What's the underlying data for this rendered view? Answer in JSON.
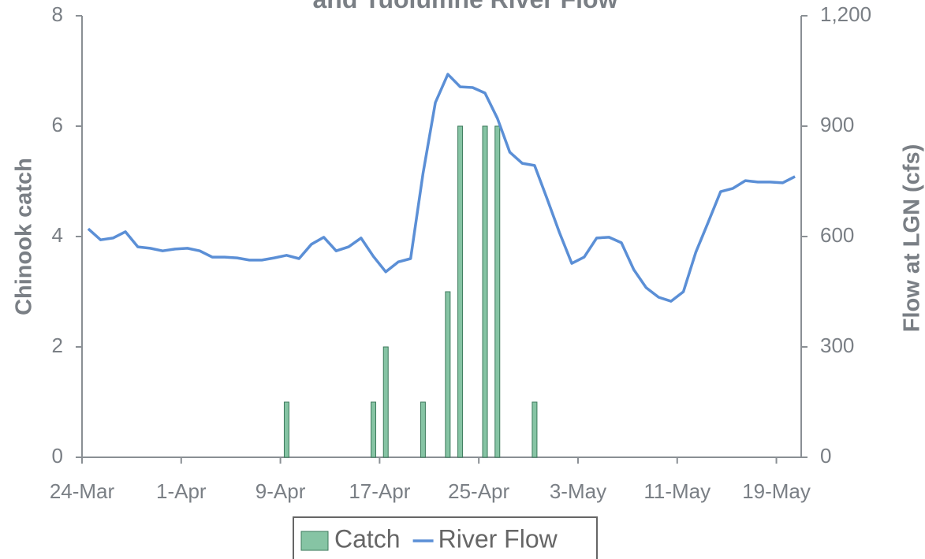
{
  "chart_data": {
    "type": "combo",
    "title": "and Tuolumne River Flow",
    "y_label": "Chinook catch",
    "y2_label": "Flow at LGN (cfs)",
    "x": [
      "24-Mar",
      "25-Mar",
      "26-Mar",
      "27-Mar",
      "28-Mar",
      "29-Mar",
      "30-Mar",
      "31-Mar",
      "1-Apr",
      "2-Apr",
      "3-Apr",
      "4-Apr",
      "5-Apr",
      "6-Apr",
      "7-Apr",
      "8-Apr",
      "9-Apr",
      "10-Apr",
      "11-Apr",
      "12-Apr",
      "13-Apr",
      "14-Apr",
      "15-Apr",
      "16-Apr",
      "17-Apr",
      "18-Apr",
      "19-Apr",
      "20-Apr",
      "21-Apr",
      "22-Apr",
      "23-Apr",
      "24-Apr",
      "25-Apr",
      "26-Apr",
      "27-Apr",
      "28-Apr",
      "29-Apr",
      "30-Apr",
      "1-May",
      "2-May",
      "3-May",
      "4-May",
      "5-May",
      "6-May",
      "7-May",
      "8-May",
      "9-May",
      "10-May",
      "11-May",
      "12-May",
      "13-May",
      "14-May",
      "15-May",
      "16-May",
      "17-May",
      "18-May",
      "19-May",
      "20-May"
    ],
    "xticks": [
      "24-Mar",
      "1-Apr",
      "9-Apr",
      "17-Apr",
      "25-Apr",
      "3-May",
      "11-May",
      "19-May"
    ],
    "ylim": [
      0,
      8
    ],
    "yticks": [
      0,
      2,
      4,
      6,
      8
    ],
    "y2lim": [
      0,
      1200
    ],
    "y2ticks": [
      0,
      300,
      600,
      900,
      {
        "value": 1200,
        "label": "1,200"
      }
    ],
    "legend": "bottom",
    "series": [
      {
        "name": "Catch",
        "type": "bar",
        "color": "#86c4a4",
        "values": [
          0,
          0,
          0,
          0,
          0,
          0,
          0,
          0,
          0,
          0,
          0,
          0,
          0,
          0,
          0,
          0,
          1,
          0,
          0,
          0,
          0,
          0,
          0,
          1,
          2,
          0,
          0,
          1,
          0,
          3,
          6,
          0,
          6,
          6,
          0,
          0,
          1,
          0,
          0,
          0,
          0,
          0,
          0,
          0,
          0,
          0,
          0,
          0,
          0,
          0,
          0,
          0,
          0,
          0,
          0,
          0,
          0,
          0
        ]
      },
      {
        "name": "River Flow",
        "type": "line",
        "axis": "y2",
        "color": "#5b8fd6",
        "values": [
          621,
          591,
          596,
          613,
          572,
          568,
          561,
          566,
          568,
          561,
          544,
          544,
          542,
          536,
          536,
          542,
          549,
          540,
          579,
          598,
          561,
          572,
          596,
          546,
          504,
          531,
          540,
          771,
          964,
          1041,
          1007,
          1005,
          990,
          921,
          829,
          799,
          793,
          703,
          611,
          527,
          544,
          596,
          598,
          583,
          510,
          461,
          435,
          424,
          450,
          557,
          639,
          722,
          731,
          752,
          748,
          748,
          746,
          763
        ]
      }
    ]
  }
}
